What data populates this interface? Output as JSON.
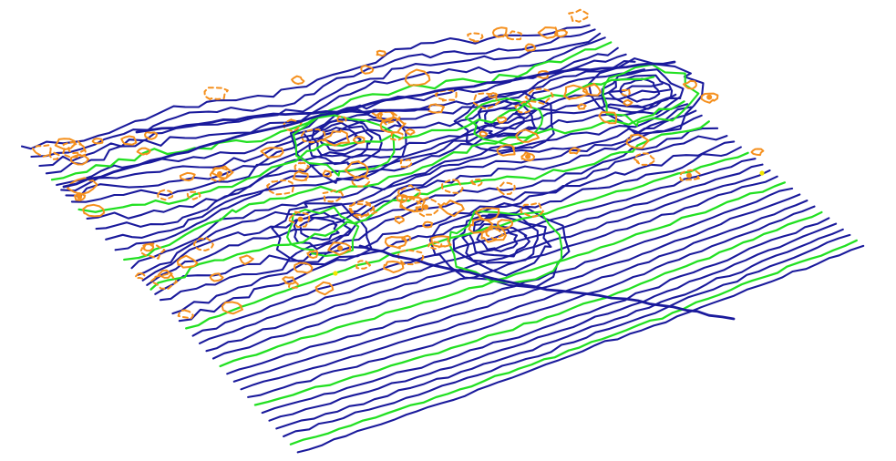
{
  "view": {
    "kind": "3d-contour-surface",
    "background": "#ffffff"
  },
  "legend_colors": {
    "contour_major": "#1a1a9c",
    "contour_index": "#22e022",
    "contour_depression": "#f5901e",
    "peak_marker": "#f2e600",
    "fault_line": "#1a1a9c"
  },
  "features": {
    "peaks_marked": 2,
    "fault_lines": 3
  }
}
